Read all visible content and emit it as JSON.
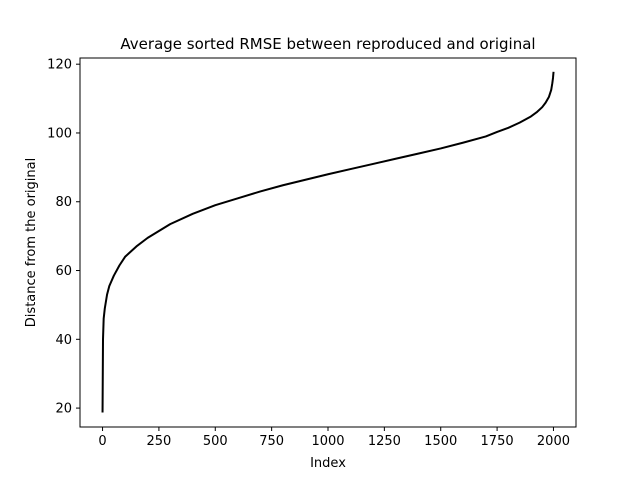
{
  "chart_data": {
    "type": "line",
    "title": "Average sorted RMSE between reproduced and original",
    "xlabel": "Index",
    "ylabel": "Distance from the original",
    "xlim": [
      -100,
      2100
    ],
    "ylim": [
      14.5,
      121.8
    ],
    "x_ticks": [
      0,
      250,
      500,
      750,
      1000,
      1250,
      1500,
      1750,
      2000
    ],
    "y_ticks": [
      20,
      40,
      60,
      80,
      100,
      120
    ],
    "grid": false,
    "series": [
      {
        "color": "#000000",
        "x": [
          0,
          2,
          5,
          10,
          20,
          30,
          40,
          50,
          75,
          100,
          150,
          200,
          250,
          300,
          400,
          500,
          600,
          700,
          800,
          900,
          1000,
          1100,
          1200,
          1300,
          1400,
          1500,
          1600,
          1700,
          1750,
          1800,
          1850,
          1900,
          1925,
          1950,
          1965,
          1980,
          1990,
          1995,
          1998,
          2000
        ],
        "y": [
          19,
          40,
          46,
          49,
          53,
          55.5,
          57,
          58.5,
          61.5,
          64,
          67,
          69.5,
          71.5,
          73.5,
          76.5,
          79,
          81,
          83,
          84.8,
          86.4,
          88,
          89.5,
          91,
          92.5,
          94,
          95.5,
          97.2,
          99,
          100.3,
          101.5,
          103,
          104.8,
          106,
          107.5,
          108.8,
          110.5,
          112.5,
          114.5,
          116,
          117.5
        ]
      }
    ]
  }
}
